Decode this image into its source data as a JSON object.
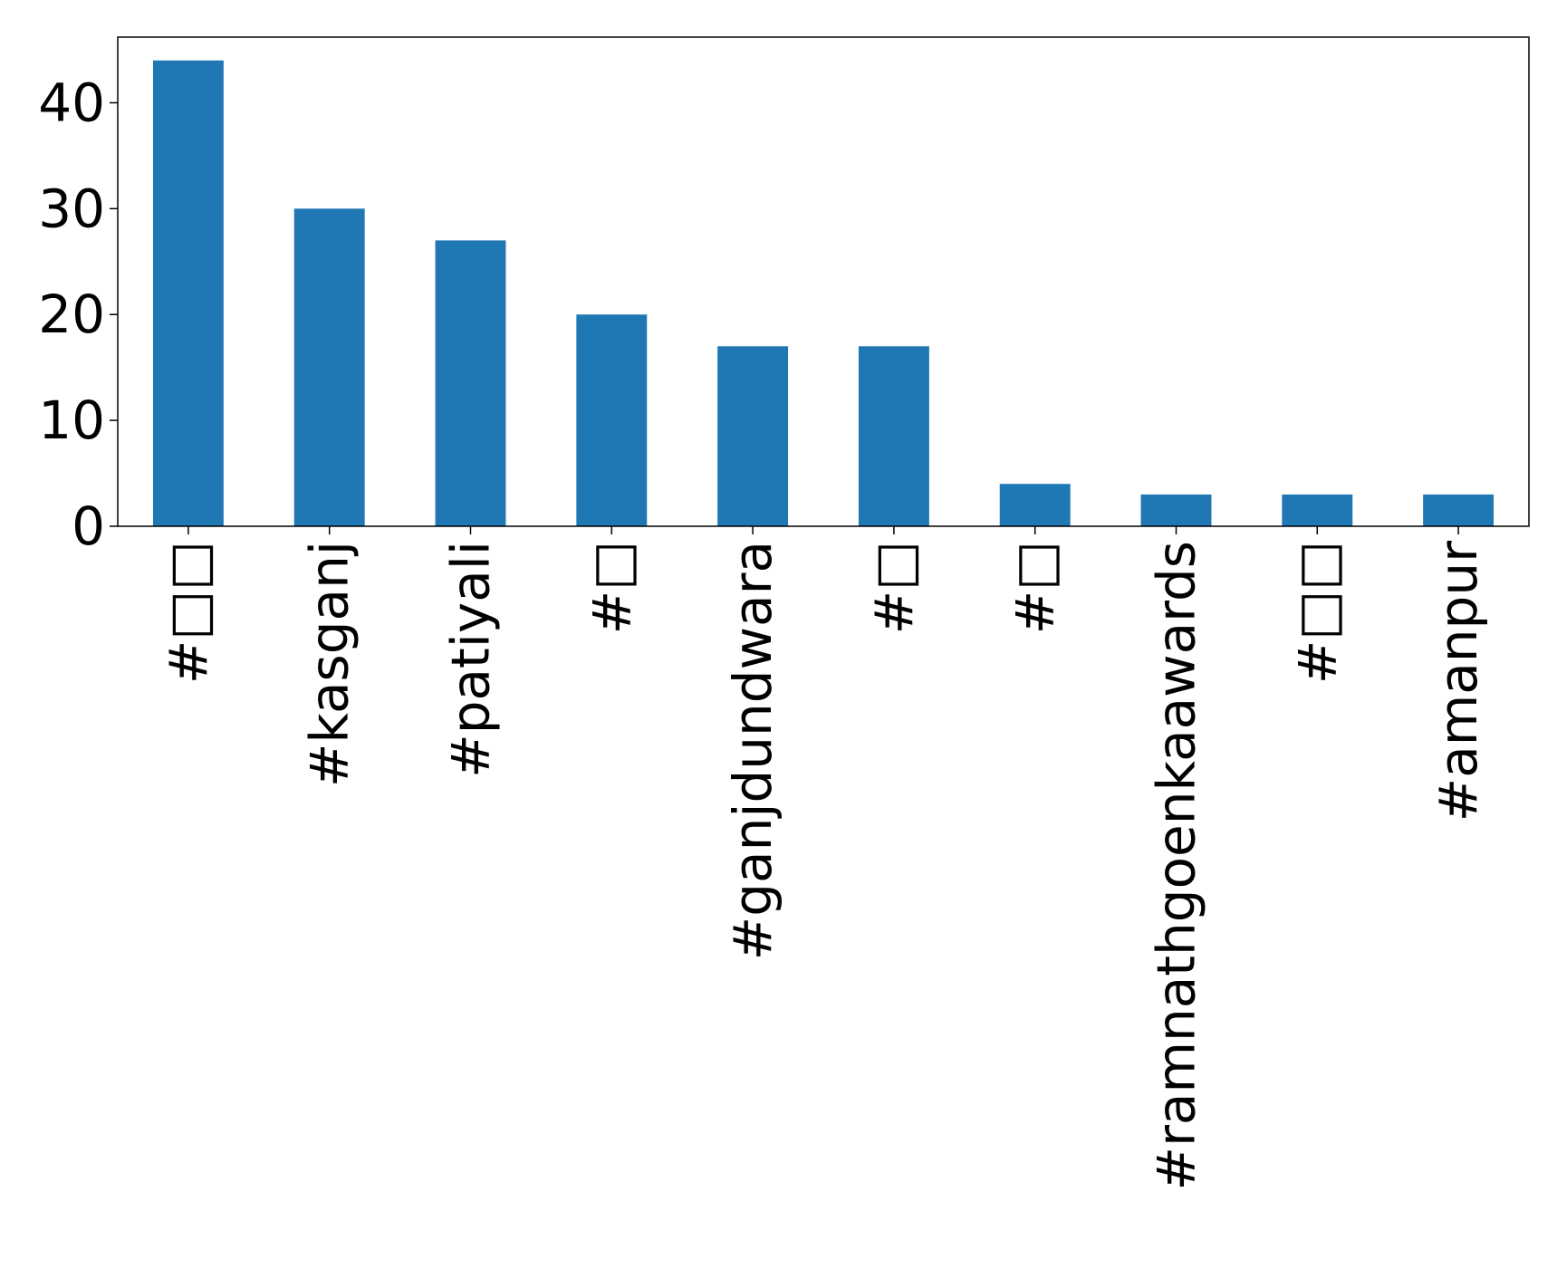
{
  "chart_data": {
    "type": "bar",
    "title": "",
    "xlabel": "",
    "ylabel": "",
    "categories": [
      "#□□",
      "#kasganj",
      "#patiyali",
      "#□",
      "#ganjdundwara",
      "#□",
      "#□",
      "#ramnathgoenkaawards",
      "#□□",
      "#amanpur"
    ],
    "values": [
      44,
      30,
      27,
      20,
      17,
      17,
      4,
      3,
      3,
      3
    ],
    "ylim": [
      0,
      46.2
    ],
    "yticks": [
      0,
      10,
      20,
      30,
      40
    ],
    "grid": false,
    "legend": "none",
    "bar_color": "#1f77b4"
  }
}
